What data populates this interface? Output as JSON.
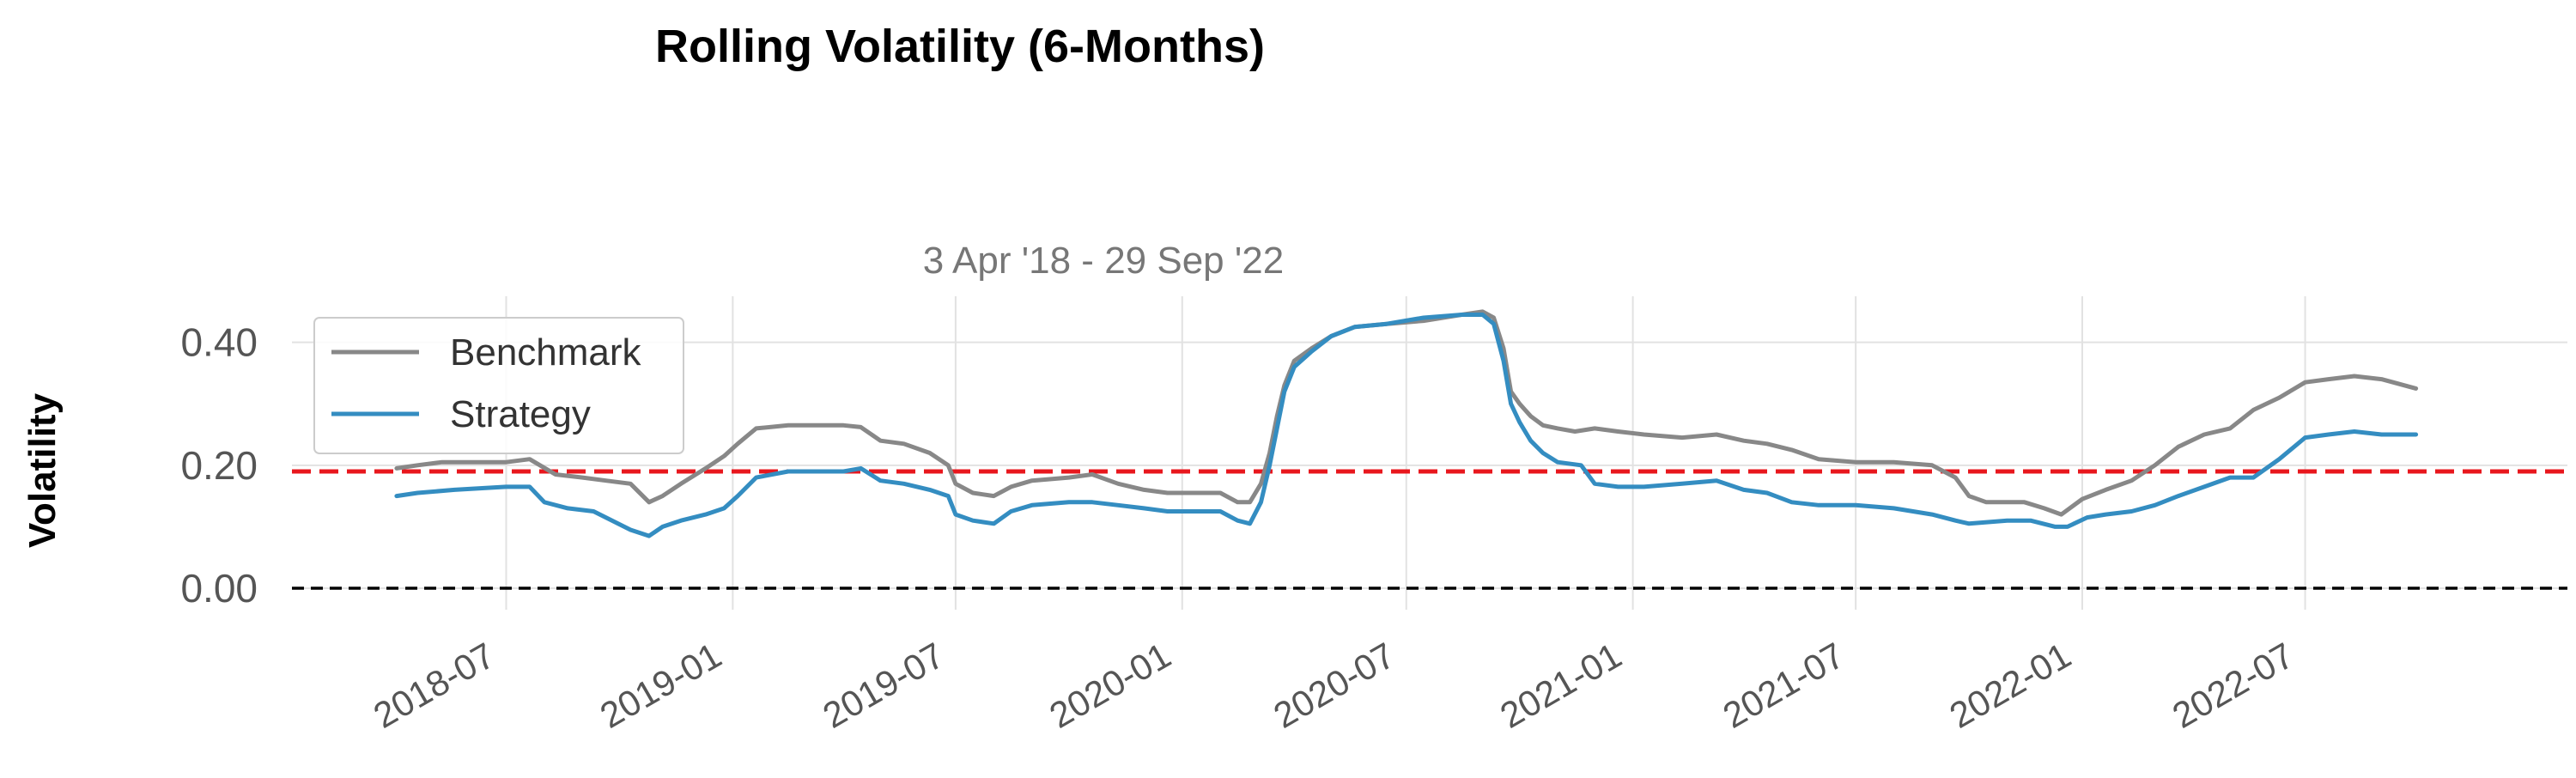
{
  "chart_data": {
    "type": "line",
    "title": "Rolling Volatility (6-Months)",
    "subtitle": "3 Apr '18 - 29 Sep '22",
    "ylabel": "Volatility",
    "xlim": [
      "2018-01-08",
      "2023-01-30"
    ],
    "ylim": [
      -0.035,
      0.475
    ],
    "yticks": [
      0.0,
      0.2,
      0.4
    ],
    "ytick_labels": [
      "0.00",
      "0.20",
      "0.40"
    ],
    "xticks": [
      "2018-07-01",
      "2019-01-01",
      "2019-07-01",
      "2020-01-01",
      "2020-07-01",
      "2021-01-01",
      "2021-07-01",
      "2022-01-01",
      "2022-07-01"
    ],
    "xtick_labels": [
      "2018-07",
      "2019-01",
      "2019-07",
      "2020-01",
      "2020-07",
      "2021-01",
      "2021-07",
      "2022-01",
      "2022-07"
    ],
    "grid": true,
    "legend_position": "top-left",
    "hlines": [
      {
        "y": 0.19,
        "color": "#e8171d",
        "style": "dashed"
      },
      {
        "y": 0.0,
        "color": "#000000",
        "style": "dashed"
      }
    ],
    "series": [
      {
        "name": "Benchmark",
        "color": "#888888",
        "points": [
          [
            "2018-04-03",
            0.195
          ],
          [
            "2018-04-20",
            0.2
          ],
          [
            "2018-05-10",
            0.205
          ],
          [
            "2018-06-01",
            0.205
          ],
          [
            "2018-07-01",
            0.205
          ],
          [
            "2018-07-20",
            0.21
          ],
          [
            "2018-08-10",
            0.185
          ],
          [
            "2018-09-01",
            0.18
          ],
          [
            "2018-09-20",
            0.175
          ],
          [
            "2018-10-10",
            0.17
          ],
          [
            "2018-10-25",
            0.14
          ],
          [
            "2018-11-05",
            0.15
          ],
          [
            "2018-11-20",
            0.17
          ],
          [
            "2018-12-10",
            0.195
          ],
          [
            "2018-12-25",
            0.215
          ],
          [
            "2019-01-05",
            0.235
          ],
          [
            "2019-01-20",
            0.26
          ],
          [
            "2019-02-15",
            0.265
          ],
          [
            "2019-03-10",
            0.265
          ],
          [
            "2019-04-01",
            0.265
          ],
          [
            "2019-04-15",
            0.262
          ],
          [
            "2019-05-01",
            0.24
          ],
          [
            "2019-05-20",
            0.235
          ],
          [
            "2019-06-10",
            0.22
          ],
          [
            "2019-06-25",
            0.2
          ],
          [
            "2019-07-01",
            0.17
          ],
          [
            "2019-07-15",
            0.155
          ],
          [
            "2019-08-01",
            0.15
          ],
          [
            "2019-08-15",
            0.165
          ],
          [
            "2019-09-01",
            0.175
          ],
          [
            "2019-10-01",
            0.18
          ],
          [
            "2019-10-20",
            0.185
          ],
          [
            "2019-11-10",
            0.17
          ],
          [
            "2019-12-01",
            0.16
          ],
          [
            "2019-12-20",
            0.155
          ],
          [
            "2020-01-10",
            0.155
          ],
          [
            "2020-02-01",
            0.155
          ],
          [
            "2020-02-15",
            0.14
          ],
          [
            "2020-02-25",
            0.14
          ],
          [
            "2020-03-05",
            0.17
          ],
          [
            "2020-03-12",
            0.22
          ],
          [
            "2020-03-18",
            0.28
          ],
          [
            "2020-03-24",
            0.33
          ],
          [
            "2020-04-01",
            0.37
          ],
          [
            "2020-04-15",
            0.39
          ],
          [
            "2020-05-01",
            0.41
          ],
          [
            "2020-05-20",
            0.425
          ],
          [
            "2020-06-15",
            0.43
          ],
          [
            "2020-07-15",
            0.435
          ],
          [
            "2020-08-15",
            0.445
          ],
          [
            "2020-09-01",
            0.45
          ],
          [
            "2020-09-10",
            0.44
          ],
          [
            "2020-09-18",
            0.39
          ],
          [
            "2020-09-24",
            0.32
          ],
          [
            "2020-10-01",
            0.3
          ],
          [
            "2020-10-10",
            0.28
          ],
          [
            "2020-10-20",
            0.265
          ],
          [
            "2020-11-01",
            0.26
          ],
          [
            "2020-11-15",
            0.255
          ],
          [
            "2020-12-01",
            0.26
          ],
          [
            "2020-12-20",
            0.255
          ],
          [
            "2021-01-10",
            0.25
          ],
          [
            "2021-02-10",
            0.245
          ],
          [
            "2021-03-10",
            0.25
          ],
          [
            "2021-04-01",
            0.24
          ],
          [
            "2021-04-20",
            0.235
          ],
          [
            "2021-05-10",
            0.225
          ],
          [
            "2021-06-01",
            0.21
          ],
          [
            "2021-07-01",
            0.205
          ],
          [
            "2021-08-01",
            0.205
          ],
          [
            "2021-09-01",
            0.2
          ],
          [
            "2021-09-20",
            0.18
          ],
          [
            "2021-10-01",
            0.15
          ],
          [
            "2021-10-15",
            0.14
          ],
          [
            "2021-11-15",
            0.14
          ],
          [
            "2021-12-01",
            0.13
          ],
          [
            "2021-12-15",
            0.12
          ],
          [
            "2022-01-01",
            0.145
          ],
          [
            "2022-01-20",
            0.16
          ],
          [
            "2022-02-10",
            0.175
          ],
          [
            "2022-03-01",
            0.2
          ],
          [
            "2022-03-20",
            0.23
          ],
          [
            "2022-04-10",
            0.25
          ],
          [
            "2022-05-01",
            0.26
          ],
          [
            "2022-05-20",
            0.29
          ],
          [
            "2022-06-10",
            0.31
          ],
          [
            "2022-07-01",
            0.335
          ],
          [
            "2022-07-20",
            0.34
          ],
          [
            "2022-08-10",
            0.345
          ],
          [
            "2022-09-01",
            0.34
          ],
          [
            "2022-09-29",
            0.325
          ]
        ]
      },
      {
        "name": "Strategy",
        "color": "#348dc1",
        "points": [
          [
            "2018-04-03",
            0.15
          ],
          [
            "2018-04-20",
            0.155
          ],
          [
            "2018-05-20",
            0.16
          ],
          [
            "2018-07-01",
            0.165
          ],
          [
            "2018-07-20",
            0.165
          ],
          [
            "2018-08-01",
            0.14
          ],
          [
            "2018-08-20",
            0.13
          ],
          [
            "2018-09-10",
            0.125
          ],
          [
            "2018-09-25",
            0.11
          ],
          [
            "2018-10-10",
            0.095
          ],
          [
            "2018-10-25",
            0.085
          ],
          [
            "2018-11-05",
            0.1
          ],
          [
            "2018-11-20",
            0.11
          ],
          [
            "2018-12-10",
            0.12
          ],
          [
            "2018-12-25",
            0.13
          ],
          [
            "2019-01-05",
            0.15
          ],
          [
            "2019-01-20",
            0.18
          ],
          [
            "2019-02-15",
            0.19
          ],
          [
            "2019-03-10",
            0.19
          ],
          [
            "2019-04-01",
            0.19
          ],
          [
            "2019-04-15",
            0.195
          ],
          [
            "2019-05-01",
            0.175
          ],
          [
            "2019-05-20",
            0.17
          ],
          [
            "2019-06-10",
            0.16
          ],
          [
            "2019-06-25",
            0.15
          ],
          [
            "2019-07-01",
            0.12
          ],
          [
            "2019-07-15",
            0.11
          ],
          [
            "2019-08-01",
            0.105
          ],
          [
            "2019-08-15",
            0.125
          ],
          [
            "2019-09-01",
            0.135
          ],
          [
            "2019-10-01",
            0.14
          ],
          [
            "2019-10-20",
            0.14
          ],
          [
            "2019-11-10",
            0.135
          ],
          [
            "2019-12-01",
            0.13
          ],
          [
            "2019-12-20",
            0.125
          ],
          [
            "2020-01-10",
            0.125
          ],
          [
            "2020-02-01",
            0.125
          ],
          [
            "2020-02-15",
            0.11
          ],
          [
            "2020-02-25",
            0.105
          ],
          [
            "2020-03-05",
            0.14
          ],
          [
            "2020-03-12",
            0.2
          ],
          [
            "2020-03-18",
            0.26
          ],
          [
            "2020-03-24",
            0.32
          ],
          [
            "2020-04-01",
            0.36
          ],
          [
            "2020-04-15",
            0.385
          ],
          [
            "2020-05-01",
            0.41
          ],
          [
            "2020-05-20",
            0.425
          ],
          [
            "2020-06-15",
            0.43
          ],
          [
            "2020-07-15",
            0.44
          ],
          [
            "2020-08-15",
            0.445
          ],
          [
            "2020-09-01",
            0.445
          ],
          [
            "2020-09-10",
            0.43
          ],
          [
            "2020-09-18",
            0.37
          ],
          [
            "2020-09-24",
            0.3
          ],
          [
            "2020-10-01",
            0.27
          ],
          [
            "2020-10-10",
            0.24
          ],
          [
            "2020-10-20",
            0.22
          ],
          [
            "2020-11-01",
            0.205
          ],
          [
            "2020-11-20",
            0.2
          ],
          [
            "2020-12-01",
            0.17
          ],
          [
            "2020-12-20",
            0.165
          ],
          [
            "2021-01-10",
            0.165
          ],
          [
            "2021-02-10",
            0.17
          ],
          [
            "2021-03-10",
            0.175
          ],
          [
            "2021-04-01",
            0.16
          ],
          [
            "2021-04-20",
            0.155
          ],
          [
            "2021-05-10",
            0.14
          ],
          [
            "2021-06-01",
            0.135
          ],
          [
            "2021-07-01",
            0.135
          ],
          [
            "2021-08-01",
            0.13
          ],
          [
            "2021-09-01",
            0.12
          ],
          [
            "2021-09-20",
            0.11
          ],
          [
            "2021-10-01",
            0.105
          ],
          [
            "2021-11-01",
            0.11
          ],
          [
            "2021-11-20",
            0.11
          ],
          [
            "2021-12-10",
            0.1
          ],
          [
            "2021-12-20",
            0.1
          ],
          [
            "2022-01-05",
            0.115
          ],
          [
            "2022-01-20",
            0.12
          ],
          [
            "2022-02-10",
            0.125
          ],
          [
            "2022-03-01",
            0.135
          ],
          [
            "2022-03-20",
            0.15
          ],
          [
            "2022-04-10",
            0.165
          ],
          [
            "2022-05-01",
            0.18
          ],
          [
            "2022-05-20",
            0.18
          ],
          [
            "2022-06-10",
            0.21
          ],
          [
            "2022-07-01",
            0.245
          ],
          [
            "2022-07-20",
            0.25
          ],
          [
            "2022-08-10",
            0.255
          ],
          [
            "2022-09-01",
            0.25
          ],
          [
            "2022-09-29",
            0.25
          ]
        ]
      }
    ]
  }
}
